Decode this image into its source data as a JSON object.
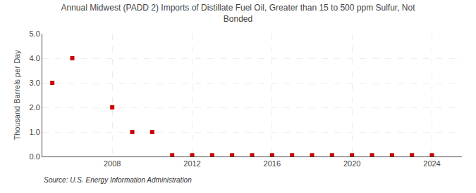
{
  "chart_data": {
    "type": "scatter",
    "title": "Annual Midwest (PADD 2) Imports of Distillate Fuel Oil, Greater than 15 to 500 ppm Sulfur, Not\nBonded",
    "ylabel": "Thousand Barrels per Day",
    "source": "Source: U.S. Energy Information Administration",
    "x": [
      2005,
      2006,
      2008,
      2009,
      2010,
      2011,
      2012,
      2013,
      2014,
      2015,
      2016,
      2017,
      2018,
      2019,
      2020,
      2021,
      2022,
      2023,
      2024
    ],
    "values": [
      3.0,
      4.0,
      2.0,
      1.0,
      1.0,
      0.05,
      0.05,
      0.05,
      0.05,
      0.05,
      0.05,
      0.05,
      0.05,
      0.05,
      0.05,
      0.05,
      0.05,
      0.05,
      0.05
    ],
    "color": "#cc0000",
    "marker": "square",
    "xlim": [
      2004.5,
      2025.5
    ],
    "xticks": [
      2008,
      2012,
      2016,
      2020,
      2024
    ],
    "ylim": [
      0.0,
      5.0
    ],
    "yticks": [
      {
        "value": 0.0,
        "label": "0.0"
      },
      {
        "value": 1.0,
        "label": "1.0"
      },
      {
        "value": 2.0,
        "label": "2.0"
      },
      {
        "value": 3.0,
        "label": "3.0"
      },
      {
        "value": 4.0,
        "label": "4.0"
      },
      {
        "value": 5.0,
        "label": "5.0"
      }
    ],
    "grid": true
  }
}
